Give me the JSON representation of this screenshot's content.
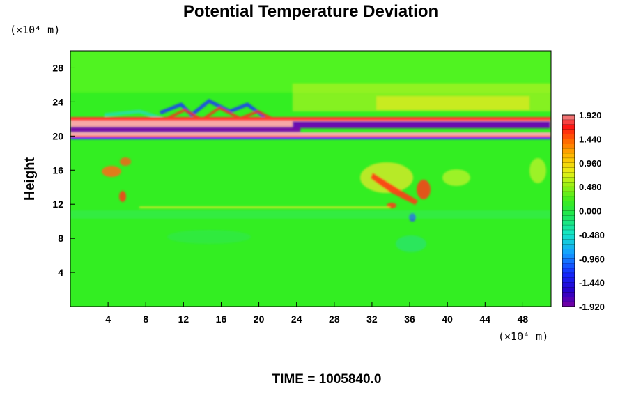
{
  "chart_data": {
    "type": "heatmap",
    "title": "Potential Temperature Deviation",
    "ylabel": "Height",
    "xunit": "(×10⁴ m)",
    "yunit": "(×10⁴ m)",
    "xlim": [
      0,
      51
    ],
    "ylim": [
      0,
      30
    ],
    "xticks": [
      4,
      8,
      12,
      16,
      20,
      24,
      28,
      32,
      36,
      40,
      44,
      48
    ],
    "yticks": [
      4,
      8,
      12,
      16,
      20,
      24,
      28
    ],
    "colorbar": {
      "min": -1.92,
      "max": 1.92,
      "tick_labels": [
        "1.920",
        "1.440",
        "0.960",
        "0.480",
        "0.000",
        "-0.480",
        "-0.960",
        "-1.440",
        "-1.920"
      ],
      "tick_values": [
        1.92,
        1.44,
        0.96,
        0.48,
        0.0,
        -0.48,
        -0.96,
        -1.44,
        -1.92
      ]
    },
    "footer": "TIME = 1005840.0"
  }
}
